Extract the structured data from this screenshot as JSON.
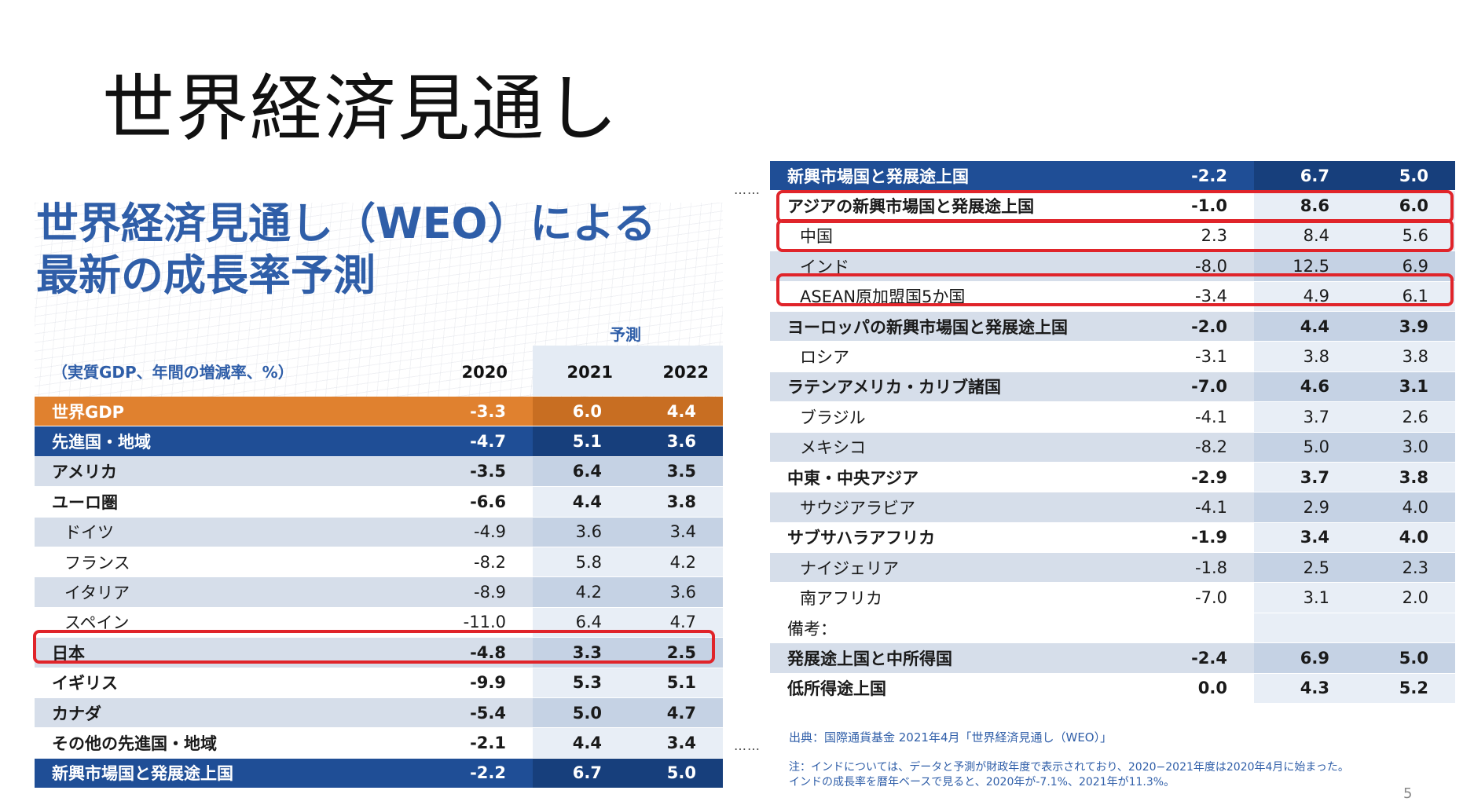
{
  "slide": {
    "title": "世界経済見通し",
    "page_number": "5"
  },
  "left": {
    "heading_line1": "世界経済見通し（WEO）による",
    "heading_line2": "最新の成長率予測",
    "forecast_label": "予測",
    "unit_label": "（実質GDP、年間の増減率、%）",
    "years": [
      "2020",
      "2021",
      "2022"
    ],
    "rows": [
      {
        "name": "世界GDP",
        "style": "orange",
        "indent": false,
        "v2020": "-3.3",
        "v2021": "6.0",
        "v2022": "4.4"
      },
      {
        "name": "先進国・地域",
        "style": "navy",
        "indent": false,
        "v2020": "-4.7",
        "v2021": "5.1",
        "v2022": "3.6"
      },
      {
        "name": "アメリカ",
        "style": "light",
        "indent": false,
        "bold": true,
        "v2020": "-3.5",
        "v2021": "6.4",
        "v2022": "3.5"
      },
      {
        "name": "ユーロ圏",
        "style": "white",
        "indent": false,
        "bold": true,
        "v2020": "-6.6",
        "v2021": "4.4",
        "v2022": "3.8"
      },
      {
        "name": "ドイツ",
        "style": "light",
        "indent": true,
        "v2020": "-4.9",
        "v2021": "3.6",
        "v2022": "3.4"
      },
      {
        "name": "フランス",
        "style": "white",
        "indent": true,
        "v2020": "-8.2",
        "v2021": "5.8",
        "v2022": "4.2"
      },
      {
        "name": "イタリア",
        "style": "light",
        "indent": true,
        "v2020": "-8.9",
        "v2021": "4.2",
        "v2022": "3.6"
      },
      {
        "name": "スペイン",
        "style": "white",
        "indent": true,
        "v2020": "-11.0",
        "v2021": "6.4",
        "v2022": "4.7"
      },
      {
        "name": "日本",
        "style": "light",
        "indent": false,
        "bold": true,
        "v2020": "-4.8",
        "v2021": "3.3",
        "v2022": "2.5"
      },
      {
        "name": "イギリス",
        "style": "white",
        "indent": false,
        "bold": true,
        "v2020": "-9.9",
        "v2021": "5.3",
        "v2022": "5.1"
      },
      {
        "name": "カナダ",
        "style": "light",
        "indent": false,
        "bold": true,
        "v2020": "-5.4",
        "v2021": "5.0",
        "v2022": "4.7"
      },
      {
        "name": "その他の先進国・地域",
        "style": "white",
        "indent": false,
        "bold": true,
        "v2020": "-2.1",
        "v2021": "4.4",
        "v2022": "3.4"
      },
      {
        "name": "新興市場国と発展途上国",
        "style": "navy",
        "indent": false,
        "v2020": "-2.2",
        "v2021": "6.7",
        "v2022": "5.0"
      }
    ]
  },
  "right": {
    "rows": [
      {
        "name": "新興市場国と発展途上国",
        "style": "navy",
        "indent": false,
        "v2020": "-2.2",
        "v2021": "6.7",
        "v2022": "5.0"
      },
      {
        "name": "アジアの新興市場国と発展途上国",
        "style": "white",
        "indent": false,
        "bold": true,
        "v2020": "-1.0",
        "v2021": "8.6",
        "v2022": "6.0"
      },
      {
        "name": "中国",
        "style": "white",
        "indent": true,
        "v2020": "2.3",
        "v2021": "8.4",
        "v2022": "5.6"
      },
      {
        "name": "インド",
        "style": "light",
        "indent": true,
        "v2020": "-8.0",
        "v2021": "12.5",
        "v2022": "6.9"
      },
      {
        "name": "ASEAN原加盟国5か国",
        "style": "white",
        "indent": true,
        "v2020": "-3.4",
        "v2021": "4.9",
        "v2022": "6.1"
      },
      {
        "name": "ヨーロッパの新興市場国と発展途上国",
        "style": "light",
        "indent": false,
        "bold": true,
        "v2020": "-2.0",
        "v2021": "4.4",
        "v2022": "3.9"
      },
      {
        "name": "ロシア",
        "style": "white",
        "indent": true,
        "v2020": "-3.1",
        "v2021": "3.8",
        "v2022": "3.8"
      },
      {
        "name": "ラテンアメリカ・カリブ諸国",
        "style": "light",
        "indent": false,
        "bold": true,
        "v2020": "-7.0",
        "v2021": "4.6",
        "v2022": "3.1"
      },
      {
        "name": "ブラジル",
        "style": "white",
        "indent": true,
        "v2020": "-4.1",
        "v2021": "3.7",
        "v2022": "2.6"
      },
      {
        "name": "メキシコ",
        "style": "light",
        "indent": true,
        "v2020": "-8.2",
        "v2021": "5.0",
        "v2022": "3.0"
      },
      {
        "name": "中東・中央アジア",
        "style": "white",
        "indent": false,
        "bold": true,
        "v2020": "-2.9",
        "v2021": "3.7",
        "v2022": "3.8"
      },
      {
        "name": "サウジアラビア",
        "style": "light",
        "indent": true,
        "v2020": "-4.1",
        "v2021": "2.9",
        "v2022": "4.0"
      },
      {
        "name": "サブサハラアフリカ",
        "style": "white",
        "indent": false,
        "bold": true,
        "v2020": "-1.9",
        "v2021": "3.4",
        "v2022": "4.0"
      },
      {
        "name": "ナイジェリア",
        "style": "light",
        "indent": true,
        "v2020": "-1.8",
        "v2021": "2.5",
        "v2022": "2.3"
      },
      {
        "name": "南アフリカ",
        "style": "white",
        "indent": true,
        "v2020": "-7.0",
        "v2021": "3.1",
        "v2022": "2.0"
      },
      {
        "name": "備考：",
        "style": "white",
        "indent": false,
        "v2020": "",
        "v2021": "",
        "v2022": ""
      },
      {
        "name": "発展途上国と中所得国",
        "style": "light",
        "indent": false,
        "bold": true,
        "v2020": "-2.4",
        "v2021": "6.9",
        "v2022": "5.0"
      },
      {
        "name": "低所得途上国",
        "style": "white",
        "indent": false,
        "bold": true,
        "v2020": "0.0",
        "v2021": "4.3",
        "v2022": "5.2"
      }
    ],
    "source": "出典：国際通貨基金 2021年4月「世界経済見通し（WEO）」",
    "note_line1": "注：インドについては、データと予測が財政年度で表示されており、2020−2021年度は2020年4月に始まった。",
    "note_line2": "インドの成長率を暦年ベースで見ると、2020年が-7.1%、2021年が11.3%。"
  },
  "colors": {
    "navy": "#1f4e96",
    "orange": "#e0812f",
    "light_row": "#d6deea",
    "highlight": "#e0242a",
    "heading_blue": "#2f5ea8"
  },
  "highlighted_rows": [
    "日本",
    "アジアの新興市場国と発展途上国",
    "中国",
    "ASEAN原加盟国5か国"
  ]
}
